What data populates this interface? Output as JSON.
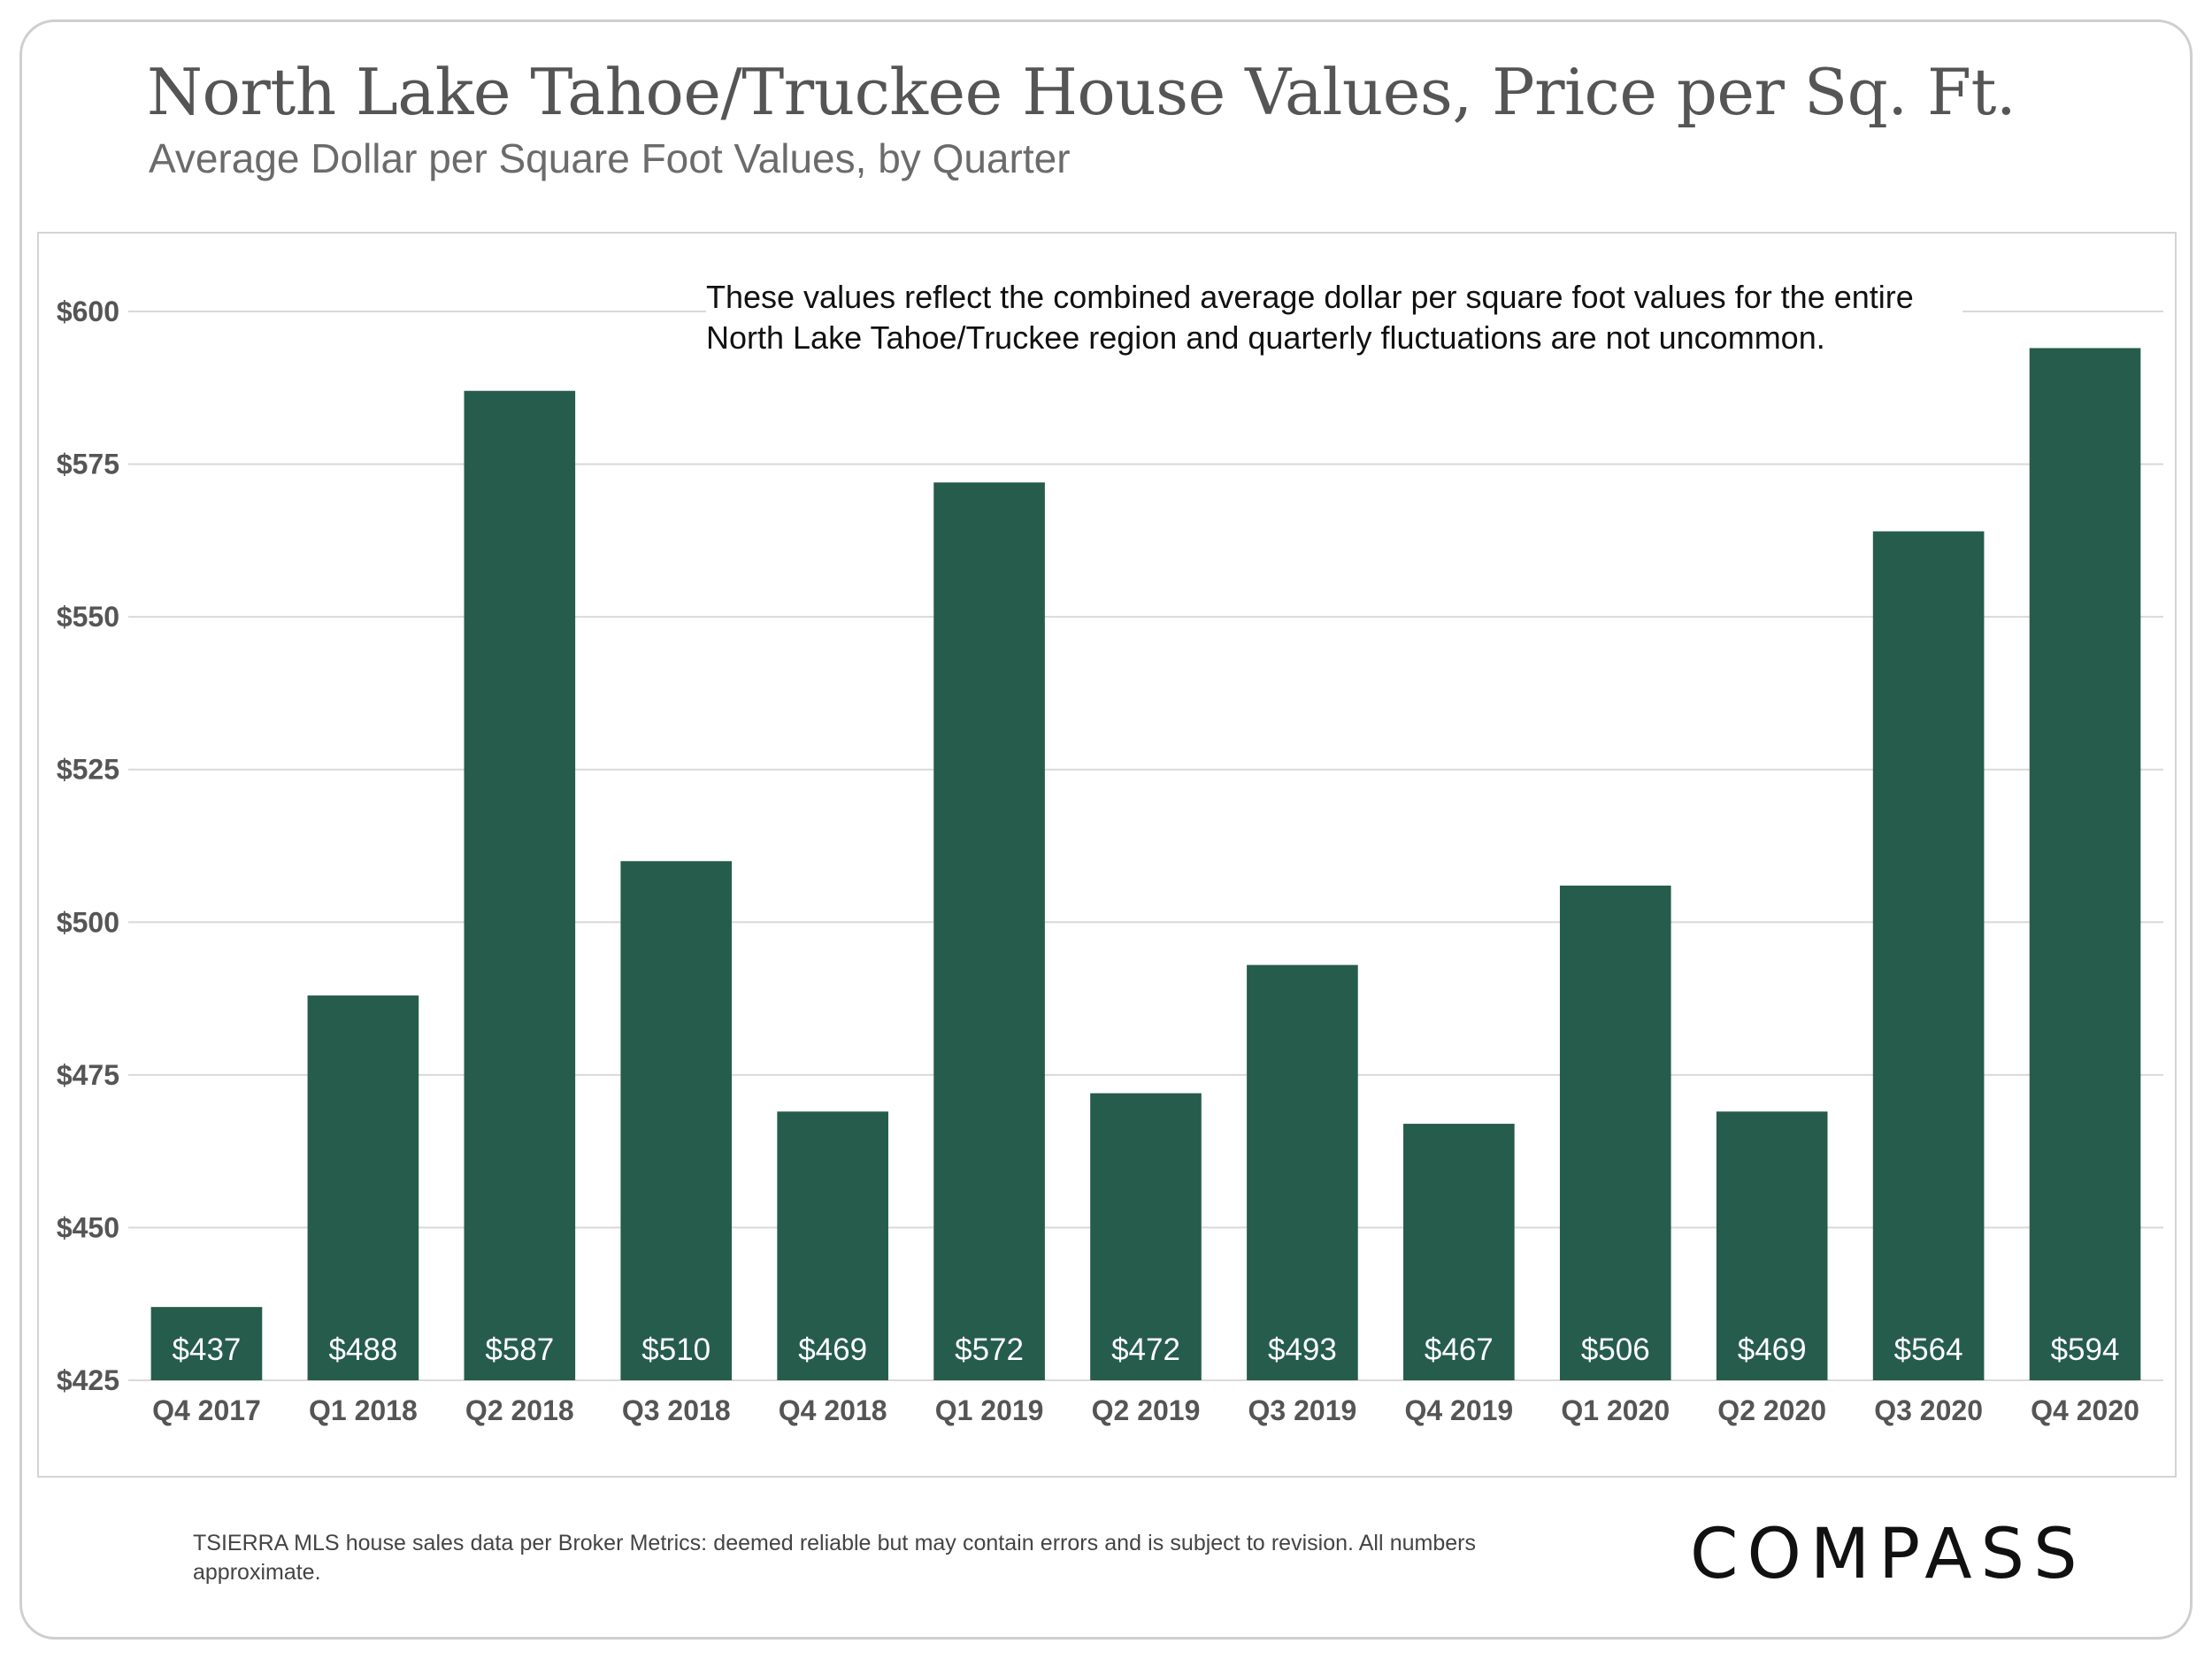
{
  "header": {
    "title": "North Lake Tahoe/Truckee House Values, Price per Sq. Ft.",
    "subtitle": "Average Dollar per Square Foot Values, by Quarter"
  },
  "note": "These values reflect the combined average dollar per square foot values for the entire North Lake Tahoe/Truckee region and quarterly fluctuations are not uncommon.",
  "footnote": "TSIERRA MLS house sales data per Broker Metrics:  deemed reliable but may contain errors and is subject to revision. All numbers approximate.",
  "logo": {
    "text": "COMPASS"
  },
  "colors": {
    "bar": "#255c4b",
    "grid": "#d9d9d9",
    "tick_text": "#555555"
  },
  "chart_data": {
    "type": "bar",
    "title": "North Lake Tahoe/Truckee House Values, Price per Sq. Ft.",
    "subtitle": "Average Dollar per Square Foot Values, by Quarter",
    "xlabel": "",
    "ylabel": "",
    "categories": [
      "Q4 2017",
      "Q1 2018",
      "Q2 2018",
      "Q3 2018",
      "Q4 2018",
      "Q1 2019",
      "Q2 2019",
      "Q3 2019",
      "Q4 2019",
      "Q1 2020",
      "Q2 2020",
      "Q3 2020",
      "Q4 2020"
    ],
    "values": [
      437,
      488,
      587,
      510,
      469,
      572,
      472,
      493,
      467,
      506,
      469,
      564,
      594
    ],
    "data_labels": [
      "$437",
      "$488",
      "$587",
      "$510",
      "$469",
      "$572",
      "$472",
      "$493",
      "$467",
      "$506",
      "$469",
      "$564",
      "$594"
    ],
    "ylim": [
      425,
      600
    ],
    "yticks": [
      425,
      450,
      475,
      500,
      525,
      550,
      575,
      600
    ],
    "ytick_labels": [
      "$425",
      "$450",
      "$475",
      "$500",
      "$525",
      "$550",
      "$575",
      "$600"
    ],
    "grid": true,
    "legend": "none"
  }
}
